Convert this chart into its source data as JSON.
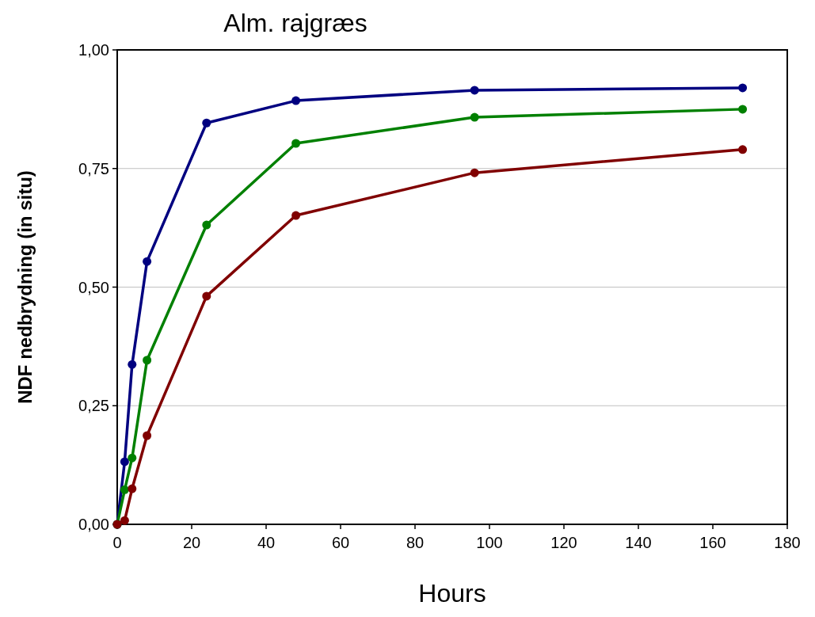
{
  "chart_data": {
    "type": "line",
    "title": "Alm. rajgræs",
    "xlabel": "Hours",
    "ylabel": "NDF nedbrydning (in situ)",
    "x": [
      0,
      2,
      4,
      8,
      24,
      48,
      96,
      168
    ],
    "series": [
      {
        "color": "#000080",
        "values": [
          0,
          0.132,
          0.337,
          0.554,
          0.846,
          0.893,
          0.915,
          0.92
        ]
      },
      {
        "color": "#008000",
        "values": [
          0,
          0.073,
          0.14,
          0.346,
          0.631,
          0.803,
          0.858,
          0.875
        ]
      },
      {
        "color": "#800000",
        "values": [
          0,
          0.008,
          0.075,
          0.187,
          0.481,
          0.651,
          0.741,
          0.79
        ]
      }
    ],
    "xlim": [
      0,
      180
    ],
    "xticks": [
      0,
      20,
      40,
      60,
      80,
      100,
      120,
      140,
      160,
      180
    ],
    "ylim": [
      0,
      1
    ],
    "yticks": [
      {
        "value": 0,
        "label": "0,00"
      },
      {
        "value": 0.25,
        "label": "0,25"
      },
      {
        "value": 0.5,
        "label": "0,50"
      },
      {
        "value": 0.75,
        "label": "0,75"
      },
      {
        "value": 1,
        "label": "1,00"
      }
    ],
    "grid": "y",
    "marker": "circle",
    "line_style": "solid"
  }
}
